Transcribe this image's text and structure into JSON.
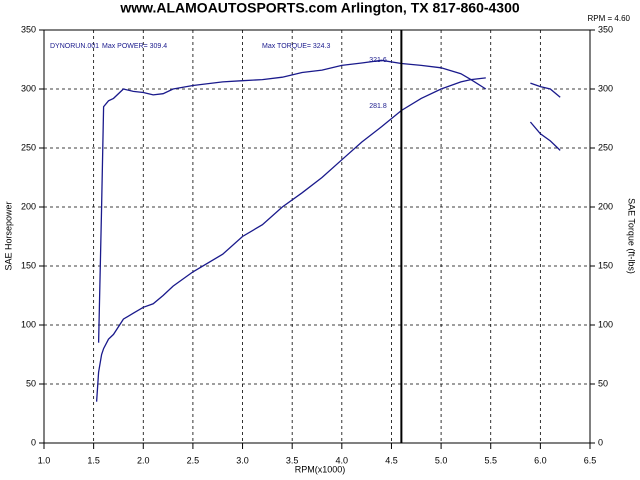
{
  "chart_data": {
    "type": "line",
    "title": "www.ALAMOAUTOSPORTS.com Arlington, TX 817-860-4300",
    "x_label": "RPM(x1000)",
    "y_label": "SAE Horsepower",
    "y2_label": "SAE Torque (ft-lbs)",
    "cursor": {
      "value": 4.6,
      "label": "RPM = 4.60"
    },
    "annotations": [
      "DYNORUN.001",
      "Max POWER= 309.4",
      "Max TORQUE= 324.3",
      "321.6",
      "281.8"
    ],
    "x": [
      1.53,
      1.55,
      1.58,
      1.6,
      1.65,
      1.7,
      1.8,
      1.9,
      2.0,
      2.1,
      2.2,
      2.3,
      2.5,
      2.8,
      3.0,
      3.2,
      3.4,
      3.6,
      3.8,
      4.0,
      4.2,
      4.4,
      4.6,
      4.8,
      5.0,
      5.2,
      5.3,
      5.45,
      5.7,
      5.9,
      6.0,
      6.1,
      6.2
    ],
    "series": [
      {
        "color": "#1a1a8c",
        "axis": "y2",
        "values": [
          null,
          85,
          200,
          285,
          290,
          292,
          300,
          298,
          297,
          295,
          296,
          300,
          303,
          306,
          307,
          308,
          310,
          314,
          316,
          320,
          322,
          324.3,
          321.6,
          320,
          318,
          313,
          308,
          300,
          null,
          305,
          302,
          300,
          293
        ]
      },
      {
        "color": "#1a1a8c",
        "values": [
          35,
          60,
          75,
          80,
          88,
          92,
          105,
          110,
          115,
          118,
          125,
          133,
          145,
          160,
          175,
          185,
          200,
          212,
          225,
          240,
          255,
          268,
          281.8,
          292,
          300,
          306,
          308,
          309.4,
          null,
          272,
          262,
          256,
          248
        ]
      }
    ],
    "xlim": [
      1.0,
      6.5
    ],
    "xticks": [
      {
        "value": 1,
        "label": "1.0"
      },
      1.5,
      {
        "value": 2,
        "label": "2.0"
      },
      2.5,
      {
        "value": 3,
        "label": "3.0"
      },
      3.5,
      {
        "value": 4,
        "label": "4.0"
      },
      4.5,
      {
        "value": 5,
        "label": "5.0"
      },
      5.5,
      {
        "value": 6,
        "label": "6.0"
      },
      6.5
    ],
    "ylim": [
      0,
      350
    ],
    "yticks": [
      0,
      50,
      100,
      150,
      200,
      250,
      300,
      350
    ],
    "y2lim": [
      0,
      350
    ],
    "y2ticks": [
      0,
      50,
      100,
      150,
      200,
      250,
      300,
      350
    ],
    "grid": true
  }
}
